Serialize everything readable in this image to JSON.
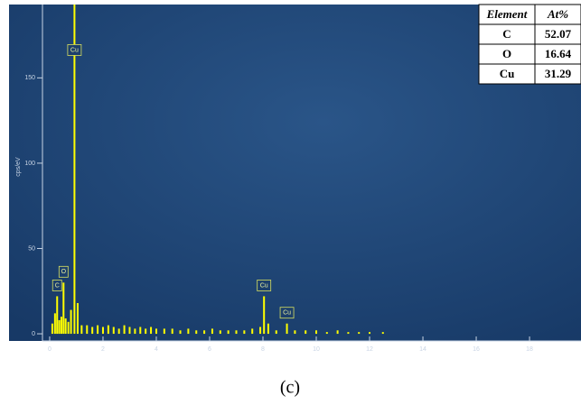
{
  "chart_data": {
    "type": "bar",
    "ylabel": "cps/eV",
    "x": [
      0.1,
      0.2,
      0.28,
      0.36,
      0.44,
      0.52,
      0.6,
      0.7,
      0.8,
      0.93,
      1.05,
      1.2,
      1.4,
      1.6,
      1.8,
      2.0,
      2.2,
      2.4,
      2.6,
      2.8,
      3.0,
      3.2,
      3.4,
      3.6,
      3.8,
      4.0,
      4.3,
      4.6,
      4.9,
      5.2,
      5.5,
      5.8,
      6.1,
      6.4,
      6.7,
      7.0,
      7.3,
      7.6,
      7.9,
      8.04,
      8.2,
      8.5,
      8.9,
      9.2,
      9.6,
      10.0,
      10.4,
      10.8,
      11.2,
      11.6,
      12.0,
      12.5
    ],
    "values": [
      6,
      12,
      22,
      8,
      10,
      30,
      9,
      7,
      14,
      200,
      18,
      5,
      5,
      4,
      5,
      4,
      5,
      4,
      3,
      5,
      4,
      3,
      4,
      3,
      4,
      3,
      3,
      3,
      2,
      3,
      2,
      2,
      3,
      2,
      2,
      2,
      2,
      3,
      4,
      22,
      6,
      2,
      6,
      2,
      2,
      2,
      1,
      2,
      1,
      1,
      1,
      1
    ],
    "color": "#ffff00",
    "xlim": [
      -0.27,
      19.93
    ],
    "xticks": [
      0,
      2,
      4,
      6,
      8,
      10,
      12,
      14,
      16,
      18
    ],
    "ylim": [
      -4.2,
      193
    ],
    "yticks": [
      0,
      50,
      100,
      150
    ],
    "annotations": [
      {
        "text": "C",
        "x": 0.28,
        "y": 22
      },
      {
        "text": "O",
        "x": 0.52,
        "y": 30
      },
      {
        "text": "Cu",
        "x": 0.93,
        "y": 160
      },
      {
        "text": "Cu",
        "x": 8.04,
        "y": 22
      },
      {
        "text": "Cu",
        "x": 8.9,
        "y": 6
      }
    ],
    "table": {
      "header": [
        "Element",
        "At%"
      ],
      "rows": [
        [
          "C",
          52.07
        ],
        [
          "O",
          16.64
        ],
        [
          "Cu",
          31.29
        ]
      ]
    },
    "caption": "(c)"
  }
}
